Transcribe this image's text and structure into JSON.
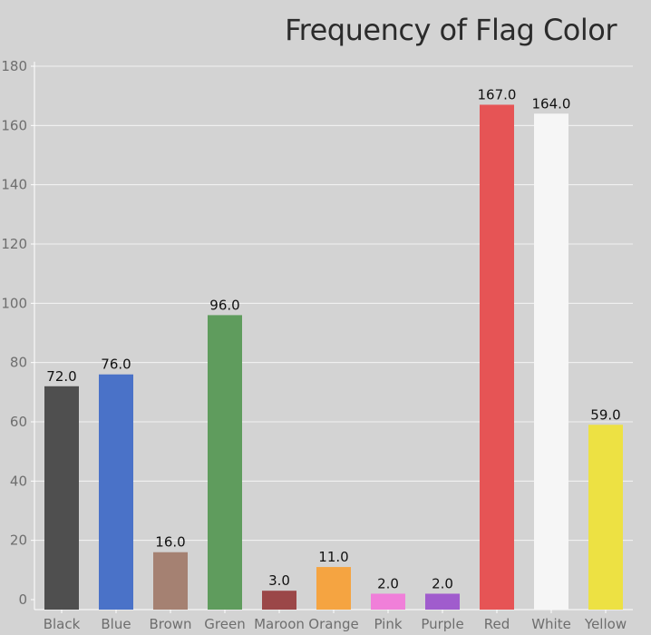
{
  "chart_data": {
    "type": "bar",
    "title": "Frequency of Flag Color",
    "xlabel": "",
    "ylabel": "",
    "categories": [
      "Black",
      "Blue",
      "Brown",
      "Green",
      "Maroon",
      "Orange",
      "Pink",
      "Purple",
      "Red",
      "White",
      "Yellow"
    ],
    "values": [
      72,
      76,
      16,
      96,
      3,
      11,
      2,
      2,
      167,
      164,
      59
    ],
    "data_labels": [
      "72.0",
      "76.0",
      "16.0",
      "96.0",
      "3.0",
      "11.0",
      "2.0",
      "2.0",
      "167.0",
      "164.0",
      "59.0"
    ],
    "colors": [
      "#4f4f4f",
      "#4a72c8",
      "#a58172",
      "#5f9c5d",
      "#9b4748",
      "#f5a441",
      "#f07fd9",
      "#a05ccd",
      "#e65455",
      "#f6f6f6",
      "#ede143"
    ],
    "ylim": [
      0,
      180
    ],
    "yticks": [
      0,
      20,
      40,
      60,
      80,
      100,
      120,
      140,
      160,
      180
    ],
    "grid": true,
    "legend": "none"
  }
}
